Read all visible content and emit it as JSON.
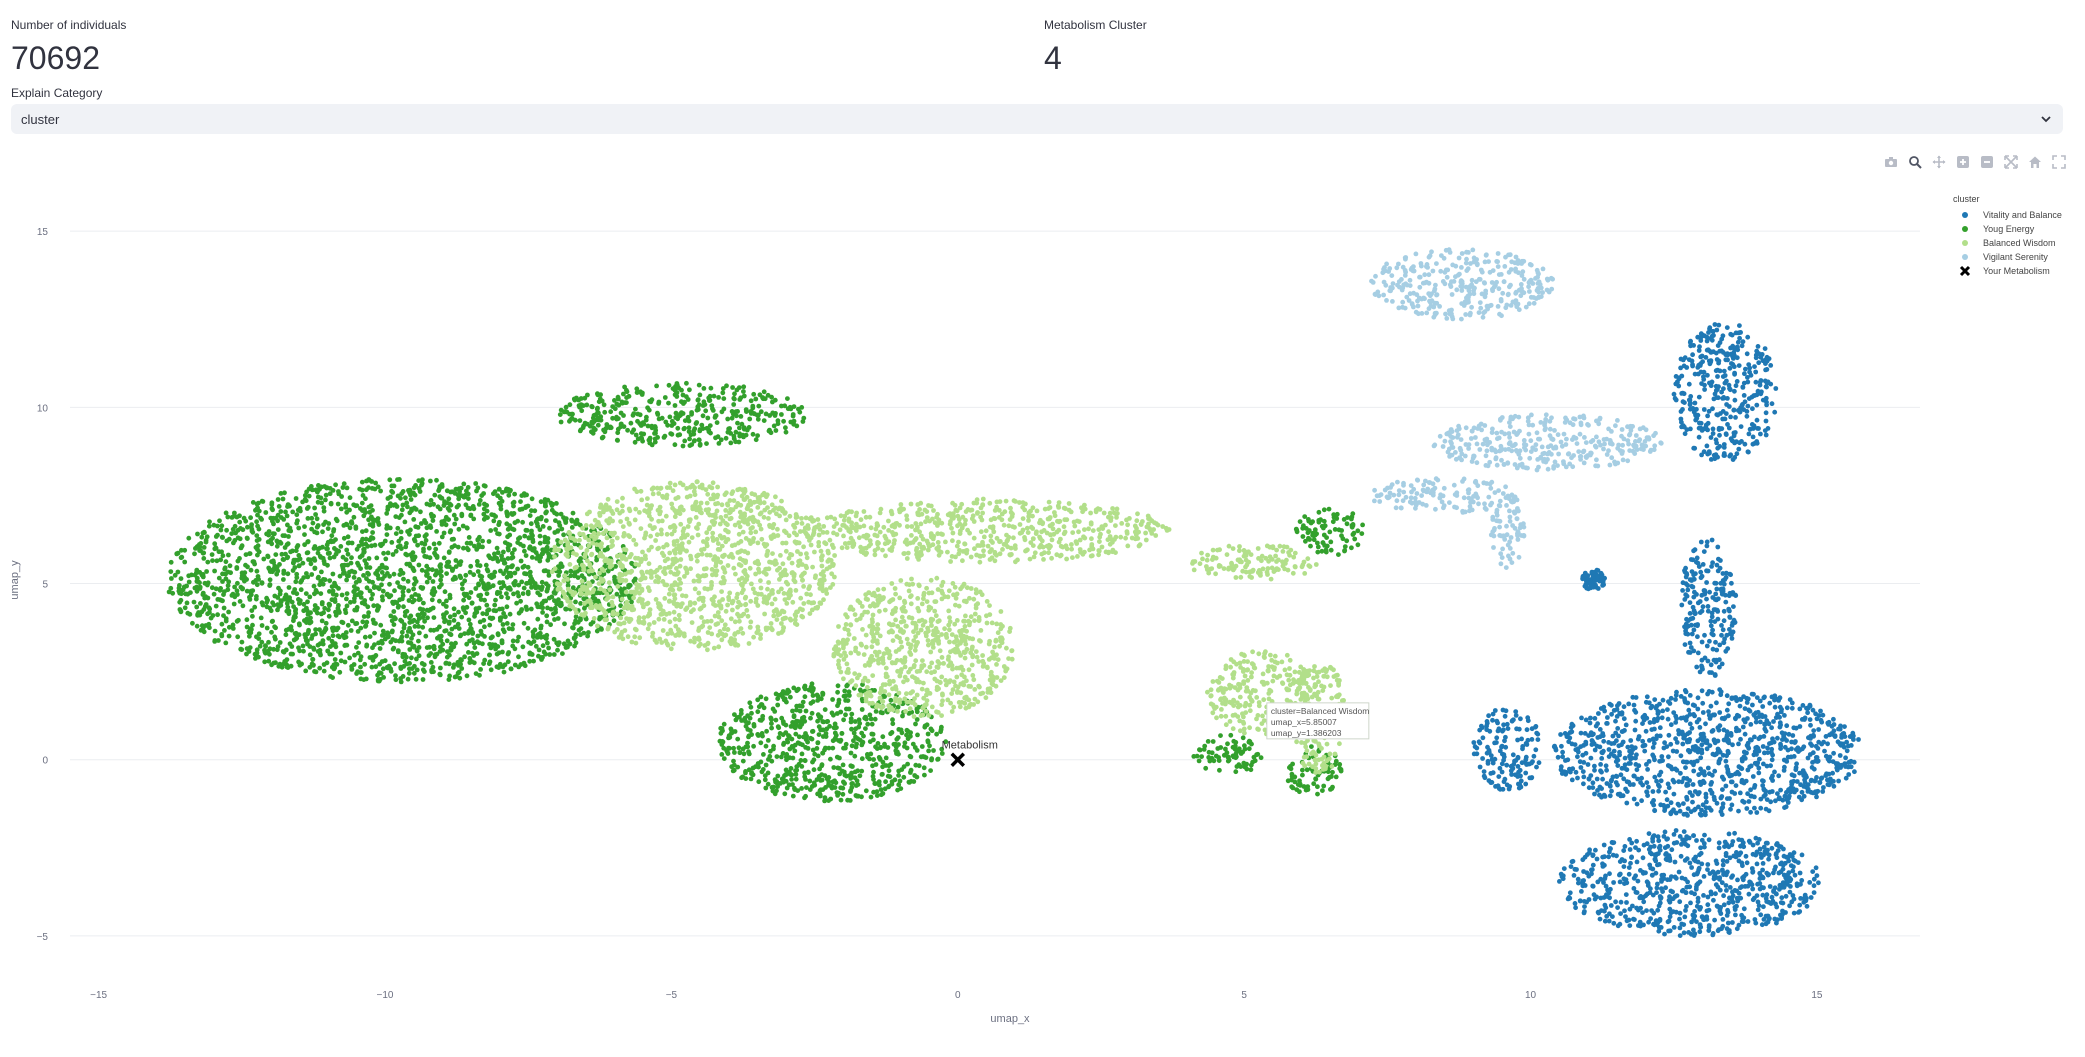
{
  "metrics": {
    "individuals": {
      "label": "Number of individuals",
      "value": "70692"
    },
    "cluster": {
      "label": "Metabolism Cluster",
      "value": "4"
    }
  },
  "select": {
    "label": "Explain Category",
    "value": "cluster"
  },
  "modebar": {
    "icons": [
      "camera-icon",
      "zoom-icon",
      "pan-icon",
      "zoom-in-icon",
      "zoom-out-icon",
      "autoscale-icon",
      "home-icon",
      "fullscreen-icon"
    ]
  },
  "chart_data": {
    "type": "scatter",
    "xlabel": "umap_x",
    "ylabel": "umap_y",
    "xlim": [
      -15.5,
      16.8
    ],
    "ylim": [
      -5.4,
      15.6
    ],
    "xticks": [
      "−15",
      "−10",
      "−5",
      "0",
      "5",
      "10",
      "15"
    ],
    "xtick_values": [
      -15,
      -10,
      -5,
      0,
      5,
      10,
      15
    ],
    "yticks": [
      "−5",
      "0",
      "5",
      "10",
      "15"
    ],
    "ytick_values": [
      -5,
      0,
      5,
      10,
      15
    ],
    "grid": "horizontal",
    "legend": {
      "title": "cluster",
      "placement": "top-right"
    },
    "series": [
      {
        "name": "Vitality and Balance",
        "color": "#1f78b4",
        "regions": [
          {
            "cx": 13.4,
            "cy": 10.4,
            "rx": 0.9,
            "ry": 2.0
          },
          {
            "cx": 13.1,
            "cy": 4.3,
            "rx": 0.5,
            "ry": 2.0
          },
          {
            "cx": 13.1,
            "cy": 0.2,
            "rx": 2.7,
            "ry": 1.8
          },
          {
            "cx": 9.6,
            "cy": 0.3,
            "rx": 0.6,
            "ry": 1.2
          },
          {
            "cx": 12.8,
            "cy": -3.5,
            "rx": 2.3,
            "ry": 1.5
          },
          {
            "cx": 11.1,
            "cy": 5.1,
            "rx": 0.2,
            "ry": 0.3
          }
        ]
      },
      {
        "name": "Youg Energy",
        "color": "#33a02c",
        "regions": [
          {
            "cx": -9.7,
            "cy": 5.1,
            "rx": 4.1,
            "ry": 2.9
          },
          {
            "cx": -4.8,
            "cy": 9.8,
            "rx": 2.2,
            "ry": 0.9
          },
          {
            "cx": -2.2,
            "cy": 0.5,
            "rx": 2.0,
            "ry": 1.7
          },
          {
            "cx": 6.5,
            "cy": 6.5,
            "rx": 0.6,
            "ry": 0.7
          },
          {
            "cx": 4.7,
            "cy": 0.1,
            "rx": 0.6,
            "ry": 0.6
          },
          {
            "cx": 6.2,
            "cy": -0.3,
            "rx": 0.5,
            "ry": 0.7
          }
        ]
      },
      {
        "name": "Balanced Wisdom",
        "color": "#b2df8a",
        "regions": [
          {
            "cx": -4.6,
            "cy": 5.5,
            "rx": 2.5,
            "ry": 2.4
          },
          {
            "cx": 0.5,
            "cy": 6.5,
            "rx": 3.2,
            "ry": 0.9
          },
          {
            "cx": -0.6,
            "cy": 3.2,
            "rx": 1.6,
            "ry": 2.0
          },
          {
            "cx": 5.2,
            "cy": 5.6,
            "rx": 1.2,
            "ry": 0.5
          },
          {
            "cx": 5.3,
            "cy": 1.9,
            "rx": 1.0,
            "ry": 1.2
          },
          {
            "cx": 6.3,
            "cy": 1.2,
            "rx": 0.5,
            "ry": 1.6
          }
        ]
      },
      {
        "name": "Vigilant Serenity",
        "color": "#a6cee3",
        "regions": [
          {
            "cx": 8.8,
            "cy": 13.5,
            "rx": 1.6,
            "ry": 1.0
          },
          {
            "cx": 10.3,
            "cy": 9.0,
            "rx": 2.0,
            "ry": 0.8
          },
          {
            "cx": 8.5,
            "cy": 7.5,
            "rx": 1.3,
            "ry": 0.5
          },
          {
            "cx": 9.6,
            "cy": 6.5,
            "rx": 0.3,
            "ry": 1.1
          }
        ]
      },
      {
        "name": "Your Metabolism",
        "color": "#000000",
        "marker": "x",
        "points": [
          {
            "x": 0.0,
            "y": 0.0,
            "label": "Metabolism"
          }
        ]
      }
    ],
    "hover": {
      "lines": [
        "cluster=Balanced Wisdom",
        "umap_x=5.85007",
        "umap_y=1.386203"
      ]
    }
  }
}
